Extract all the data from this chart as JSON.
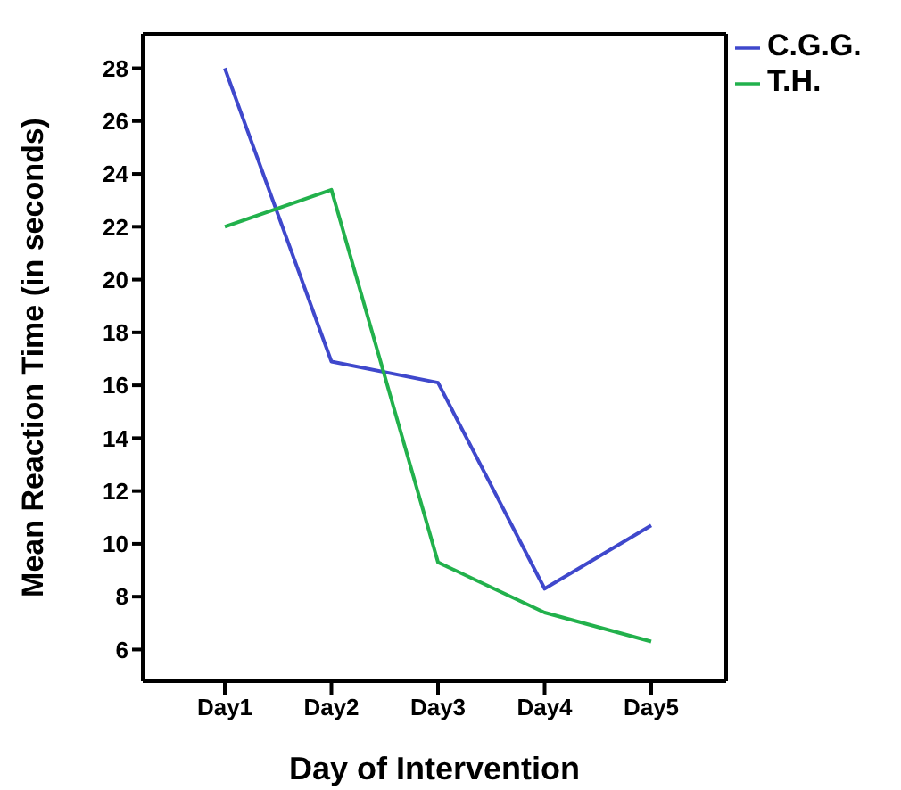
{
  "chart_data": {
    "type": "line",
    "xlabel": "Day of Intervention",
    "ylabel": "Mean Reaction Time (in seconds)",
    "categories": [
      "Day1",
      "Day2",
      "Day3",
      "Day4",
      "Day5"
    ],
    "series": [
      {
        "name": "C.G.G.",
        "color": "#3f48cc",
        "values": [
          28,
          16.9,
          16.1,
          8.3,
          10.7
        ]
      },
      {
        "name": "T.H.",
        "color": "#22b14c",
        "values": [
          22,
          23.4,
          9.3,
          7.4,
          6.3
        ]
      }
    ],
    "ylim": [
      4.8,
      29.3
    ],
    "yticks": [
      6,
      8,
      10,
      12,
      14,
      16,
      18,
      20,
      22,
      24,
      26,
      28
    ],
    "grid": false,
    "legend": "top right",
    "marker": "none",
    "line_style": "solid"
  }
}
